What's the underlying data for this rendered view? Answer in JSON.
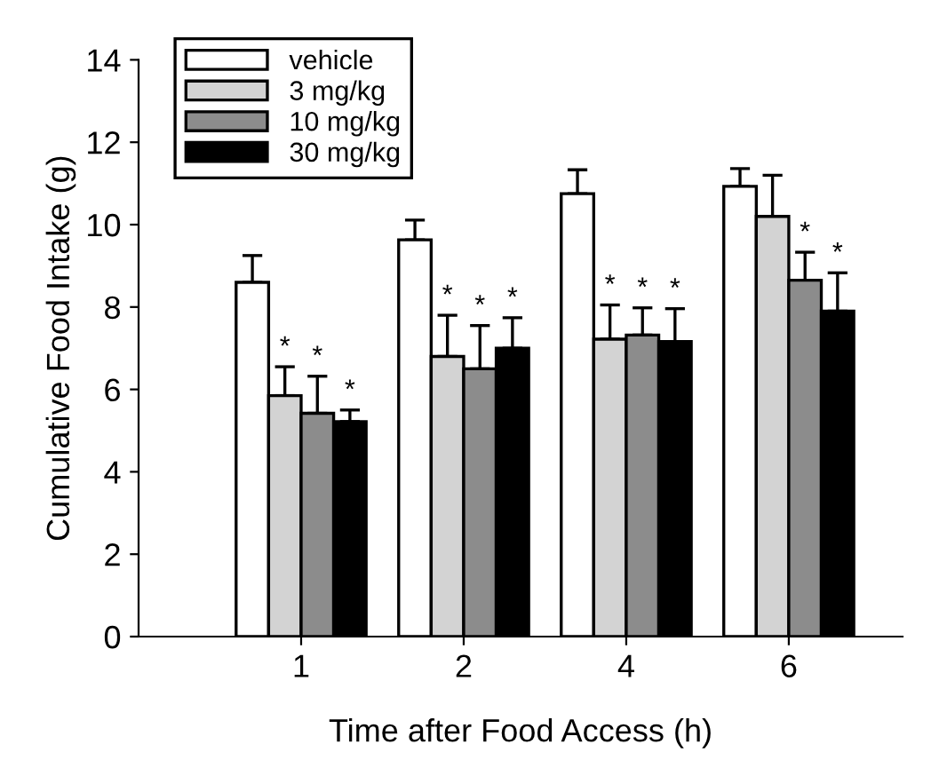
{
  "chart_data": {
    "type": "bar",
    "xlabel": "Time after Food Access (h)",
    "ylabel": "Cumulative Food Intake (g)",
    "categories": [
      "1",
      "2",
      "4",
      "6"
    ],
    "series": [
      {
        "name": "vehicle",
        "color": "#ffffff",
        "values": [
          8.6,
          9.63,
          10.75,
          10.93
        ],
        "errors": [
          0.65,
          0.48,
          0.58,
          0.43
        ],
        "value_labels": [
          null,
          null,
          null,
          null
        ]
      },
      {
        "name": "3 mg/kg",
        "color": "#d3d3d3",
        "values": [
          5.85,
          6.8,
          7.22,
          10.2
        ],
        "errors": [
          0.7,
          1.0,
          0.83,
          1.0
        ],
        "value_labels": [
          "*",
          "*",
          "*",
          null
        ]
      },
      {
        "name": "10 mg/kg",
        "color": "#8c8c8c",
        "values": [
          5.42,
          6.5,
          7.32,
          8.65
        ],
        "errors": [
          0.9,
          1.05,
          0.66,
          0.68
        ],
        "value_labels": [
          "*",
          "*",
          "*",
          "*"
        ]
      },
      {
        "name": "30 mg/kg",
        "color": "#000000",
        "values": [
          5.22,
          7.0,
          7.16,
          7.9
        ],
        "errors": [
          0.28,
          0.74,
          0.8,
          0.93
        ],
        "value_labels": [
          "*",
          "*",
          "*",
          "*"
        ]
      }
    ],
    "ylim": [
      0,
      14
    ],
    "yticks": [
      0,
      2,
      4,
      6,
      8,
      10,
      12,
      14
    ],
    "grid": false,
    "legend": "top left"
  }
}
